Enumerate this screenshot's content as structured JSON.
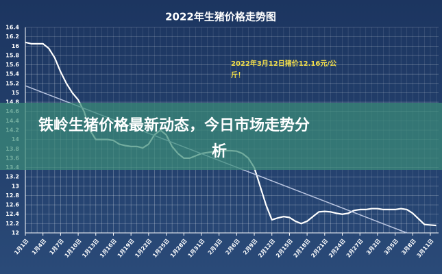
{
  "chart_data": {
    "type": "line",
    "title": "2022年生猪价格走势图",
    "categories": [
      "1月1日",
      null,
      null,
      "1月4日",
      null,
      null,
      "1月7日",
      null,
      null,
      "1月10日",
      null,
      null,
      "1月13日",
      null,
      null,
      "1月16日",
      null,
      null,
      "1月19日",
      null,
      null,
      "1月22日",
      null,
      null,
      "1月25日",
      null,
      null,
      "1月28日",
      null,
      null,
      "1月31日",
      null,
      null,
      "2月3日",
      null,
      null,
      "2月6日",
      null,
      null,
      "2月9日",
      null,
      null,
      "2月12日",
      null,
      null,
      "2月15日",
      null,
      null,
      "2月18日",
      null,
      null,
      "2月21日",
      null,
      null,
      "2月24日",
      null,
      null,
      "2月27日",
      null,
      null,
      "3月2日",
      null,
      null,
      "3月5日",
      null,
      null,
      "3月8日",
      null,
      null,
      "3月11日",
      null
    ],
    "series": [
      {
        "color": "#ffffff",
        "values": [
          16.08,
          16.05,
          16.05,
          16.05,
          15.95,
          15.75,
          15.45,
          15.2,
          15.0,
          14.85,
          14.6,
          14.2,
          14.0,
          14.0,
          14.0,
          13.98,
          13.9,
          13.87,
          13.85,
          13.85,
          13.82,
          13.9,
          14.1,
          14.2,
          14.1,
          13.85,
          13.7,
          13.6,
          13.6,
          13.65,
          13.7,
          13.72,
          13.74,
          13.75,
          13.76,
          13.76,
          13.75,
          13.7,
          13.6,
          13.4,
          13.0,
          12.6,
          12.28,
          12.32,
          12.35,
          12.33,
          12.25,
          12.2,
          12.25,
          12.35,
          12.45,
          12.46,
          12.45,
          12.42,
          12.4,
          12.42,
          12.48,
          12.5,
          12.5,
          12.52,
          12.52,
          12.5,
          12.5,
          12.5,
          12.52,
          12.5,
          12.42,
          12.3,
          12.18,
          12.17,
          12.16
        ]
      }
    ],
    "trend_line": {
      "color": "#b8c4e0",
      "x": [
        0,
        65
      ],
      "values": [
        15.15,
        12.0
      ]
    },
    "ylim": [
      12,
      16.4
    ],
    "yticks": [
      12,
      12.2,
      12.4,
      12.6,
      12.8,
      13,
      13.2,
      13.4,
      13.6,
      13.8,
      14,
      14.2,
      14.4,
      14.6,
      14.8,
      15,
      15.2,
      15.4,
      15.6,
      15.8,
      16,
      16.2,
      16.4
    ],
    "grid": true,
    "annotation": [
      "2022年3月12日猪价12.16元/公",
      "斤！"
    ]
  },
  "overlay_title": [
    "铁岭生猪价格最新动态，今日市场走势分",
    "析"
  ]
}
